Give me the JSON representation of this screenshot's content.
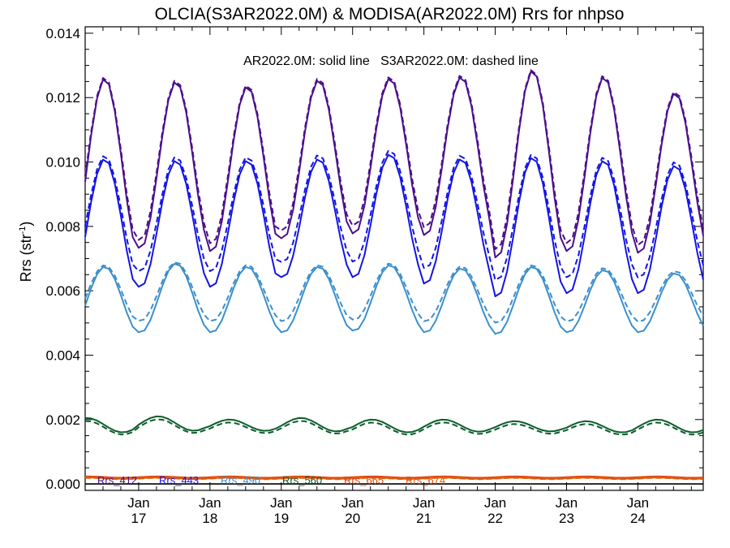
{
  "chart_data": {
    "type": "line",
    "title": "OLCIA(S3AR2022.0M) & MODISA(AR2022.0M)  Rrs for nhpso",
    "xlabel": "",
    "ylabel_main": "Rrs (str",
    "ylabel_sup": "-1",
    "ylabel_close": ")",
    "annotation": "AR2022.0M: solid line   S3AR2022.0M: dashed line",
    "x_unit": "month",
    "x_start": "2016-04",
    "x_end": "2024-12",
    "xlim": [
      "2016-04",
      "2024-12"
    ],
    "ylim": [
      -0.0002,
      0.0142
    ],
    "y_ticks": [
      0.0,
      0.002,
      0.004,
      0.006,
      0.008,
      0.01,
      0.012,
      0.014
    ],
    "y_tick_labels": [
      "0.000",
      "0.002",
      "0.004",
      "0.006",
      "0.008",
      "0.010",
      "0.012",
      "0.014"
    ],
    "x_ticks": [
      "2017-01",
      "2018-01",
      "2019-01",
      "2020-01",
      "2021-01",
      "2022-01",
      "2023-01",
      "2024-01"
    ],
    "x_tick_labels": [
      {
        "top": "Jan",
        "bottom": "17"
      },
      {
        "top": "Jan",
        "bottom": "18"
      },
      {
        "top": "Jan",
        "bottom": "19"
      },
      {
        "top": "Jan",
        "bottom": "20"
      },
      {
        "top": "Jan",
        "bottom": "21"
      },
      {
        "top": "Jan",
        "bottom": "22"
      },
      {
        "top": "Jan",
        "bottom": "23"
      },
      {
        "top": "Jan",
        "bottom": "24"
      }
    ],
    "zero_line": true,
    "legend_position": "bottom-left, inside",
    "series": [
      {
        "name": "Rrs_412",
        "color": "#4b0f8c",
        "mean": 0.00995,
        "amp": 0.00265,
        "phase": 0.0,
        "mean_dashed": 0.0101,
        "amp_dashed": 0.00255,
        "min_annual": [
          0.00705,
          0.0073,
          0.0072,
          0.0076,
          0.00775,
          0.0077,
          0.007,
          0.0072,
          0.00715
        ],
        "max_annual": [
          0.0126,
          0.0125,
          0.01235,
          0.01255,
          0.0126,
          0.01265,
          0.01285,
          0.01265,
          0.01215
        ]
      },
      {
        "name": "Rrs_443",
        "color": "#1414e6",
        "mean": 0.008,
        "amp": 0.0021,
        "phase": 0.0,
        "mean_dashed": 0.0083,
        "amp_dashed": 0.0019,
        "min_annual": [
          0.0059,
          0.0061,
          0.0061,
          0.0064,
          0.0064,
          0.0062,
          0.0058,
          0.0059,
          0.0059
        ],
        "max_annual": [
          0.0101,
          0.01005,
          0.01005,
          0.0101,
          0.01025,
          0.0101,
          0.01015,
          0.01005,
          0.0099
        ]
      },
      {
        "name": "Rrs_490",
        "color": "#3b8fce",
        "mean": 0.0057,
        "amp": 0.00105,
        "phase": 0.0,
        "mean_dashed": 0.0059,
        "amp_dashed": 0.0009,
        "min_annual": [
          0.00465,
          0.0047,
          0.0047,
          0.0047,
          0.00475,
          0.0047,
          0.00465,
          0.0047,
          0.0047
        ],
        "max_annual": [
          0.00675,
          0.00685,
          0.00675,
          0.00675,
          0.0068,
          0.0067,
          0.00675,
          0.00665,
          0.00655
        ]
      },
      {
        "name": "Rrs_560",
        "color": "#0b5d2a",
        "mean": 0.00182,
        "amp": 0.00018,
        "phase": 0.5,
        "mean_dashed": 0.00174,
        "amp_dashed": 0.00017,
        "min_annual": [
          0.0016,
          0.00165,
          0.00165,
          0.00163,
          0.0016,
          0.00162,
          0.00163,
          0.0016,
          0.0016
        ],
        "max_annual": [
          0.00205,
          0.0021,
          0.002,
          0.00205,
          0.002,
          0.002,
          0.00195,
          0.00195,
          0.002
        ]
      },
      {
        "name": "Rrs_665",
        "color": "#e0470e",
        "mean": 0.00021,
        "amp": 2e-05,
        "phase": 0.5,
        "mean_dashed": 0.0002,
        "amp_dashed": 2e-05,
        "min_annual": [],
        "max_annual": []
      },
      {
        "name": "Rrs_674",
        "color": "#e05a0e",
        "mean": 0.00018,
        "amp": 2e-05,
        "phase": 0.5,
        "mean_dashed": 0.00017,
        "amp_dashed": 2e-05,
        "min_annual": [],
        "max_annual": []
      }
    ]
  }
}
